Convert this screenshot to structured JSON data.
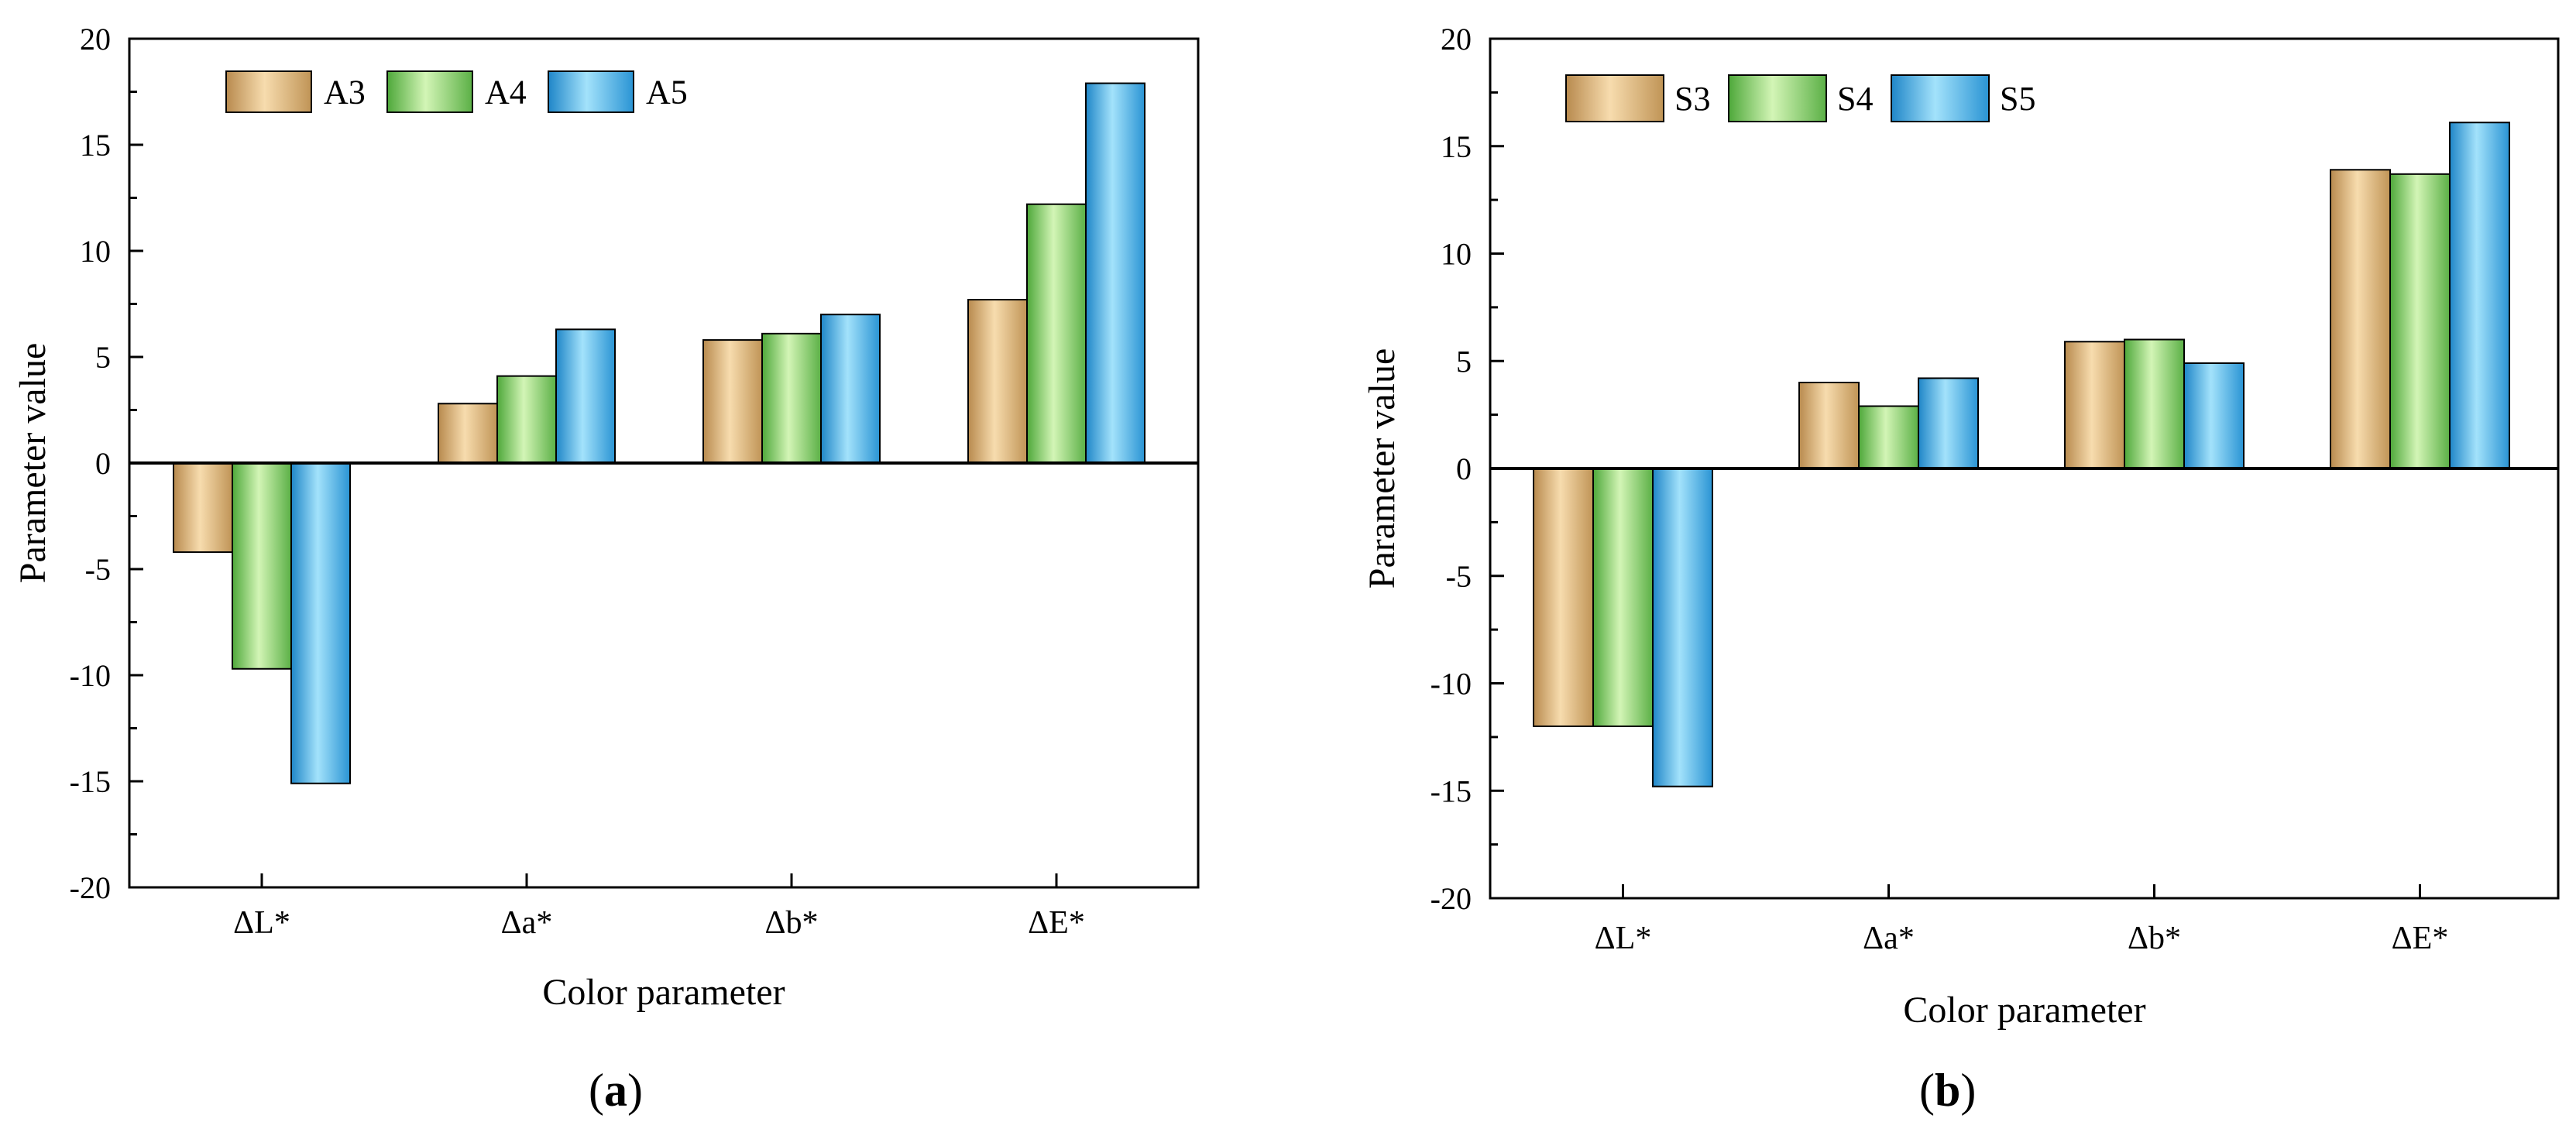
{
  "chart_data": [
    {
      "type": "bar",
      "panel_label": "a",
      "categories": [
        "ΔL*",
        "Δa*",
        "Δb*",
        "ΔE*"
      ],
      "series": [
        {
          "name": "A3",
          "values": [
            -4.2,
            2.8,
            5.8,
            7.7
          ]
        },
        {
          "name": "A4",
          "values": [
            -9.7,
            4.1,
            6.1,
            12.2
          ]
        },
        {
          "name": "A5",
          "values": [
            -15.1,
            6.3,
            7.0,
            17.9
          ]
        }
      ],
      "xlabel": "Color parameter",
      "ylabel": "Parameter value",
      "ylim": [
        -20,
        20
      ],
      "yticks": [
        "20",
        "15",
        "10",
        "5",
        "0",
        "-5",
        "-10",
        "-15",
        "-20"
      ],
      "ytick_values": [
        20,
        15,
        10,
        5,
        0,
        -5,
        -10,
        -15,
        -20
      ],
      "legend_position": "top-left",
      "grid": false
    },
    {
      "type": "bar",
      "panel_label": "b",
      "categories": [
        "ΔL*",
        "Δa*",
        "Δb*",
        "ΔE*"
      ],
      "series": [
        {
          "name": "S3",
          "values": [
            -12.0,
            4.0,
            5.9,
            13.9
          ]
        },
        {
          "name": "S4",
          "values": [
            -12.0,
            2.9,
            6.0,
            13.7
          ]
        },
        {
          "name": "S5",
          "values": [
            -14.8,
            4.2,
            4.9,
            16.1
          ]
        }
      ],
      "xlabel": "Color parameter",
      "ylabel": "Parameter value",
      "ylim": [
        -20,
        20
      ],
      "yticks": [
        "20",
        "15",
        "10",
        "5",
        "0",
        "-5",
        "-10",
        "-15",
        "-20"
      ],
      "ytick_values": [
        20,
        15,
        10,
        5,
        0,
        -5,
        -10,
        -15,
        -20
      ],
      "legend_position": "top-left",
      "grid": false
    }
  ],
  "colors": {
    "series1": [
      "#b88a4e",
      "#f0cf9a",
      "#c09456"
    ],
    "series2": [
      "#4ea83a",
      "#c8f0a8",
      "#5bb046"
    ],
    "series3": [
      "#1f86c8",
      "#8fd8f8",
      "#2a94d4"
    ]
  }
}
